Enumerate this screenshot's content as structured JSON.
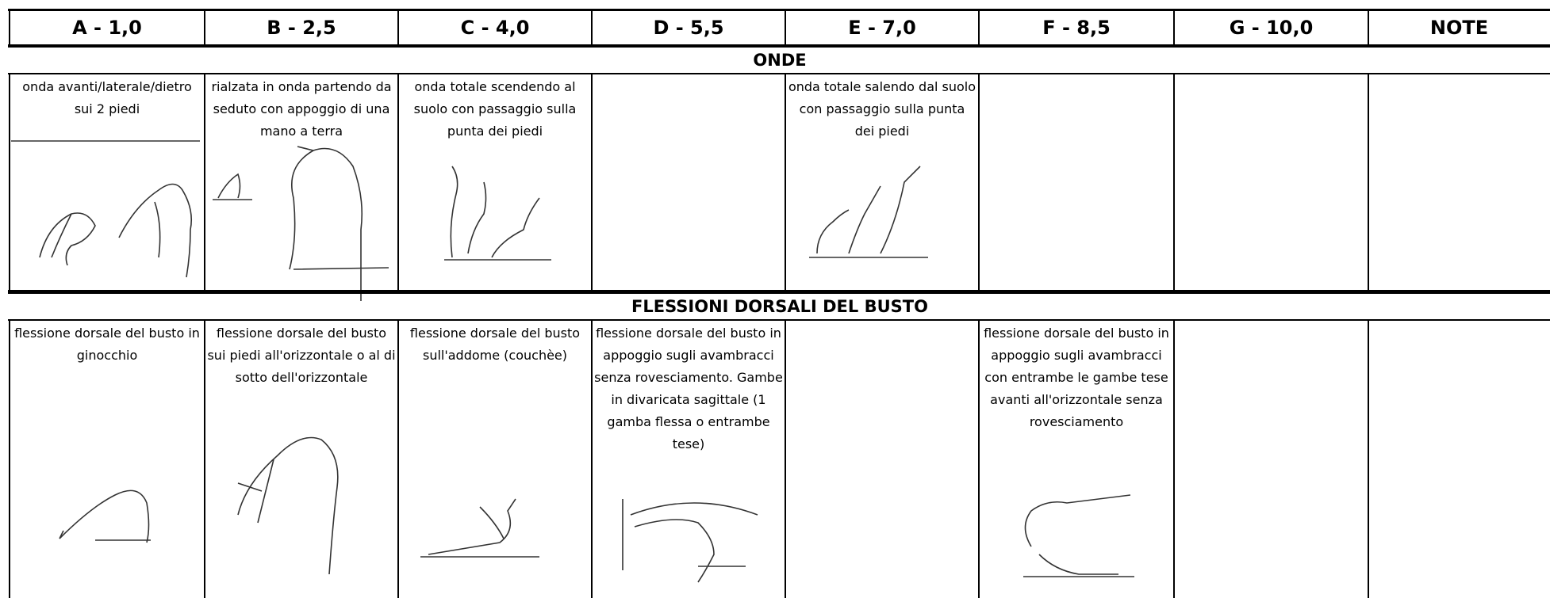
{
  "header": {
    "columns": [
      "A - 1,0",
      "B - 2,5",
      "C - 4,0",
      "D - 5,5",
      "E - 7,0",
      "F - 8,5",
      "G - 10,0",
      "NOTE"
    ]
  },
  "sections": [
    {
      "title": "ONDE",
      "cells": [
        "onda avanti/laterale/dietro sui 2 piedi",
        "rialzata in onda partendo da seduto con appoggio di una mano a terra",
        "onda totale scendendo al suolo con passaggio sulla punta dei piedi",
        null,
        "onda totale salendo dal suolo con passaggio sulla punta dei piedi",
        null,
        null,
        null
      ]
    },
    {
      "title": "FLESSIONI DORSALI DEL BUSTO",
      "cells": [
        "flessione dorsale del busto in ginocchio",
        "flessione dorsale del busto sui piedi all'orizzontale o al di sotto dell'orizzontale",
        "flessione dorsale del busto sull'addome (couchèe)",
        "flessione dorsale del busto in appoggio sugli avambracci senza rovesciamento. Gambe in divaricata sagittale (1 gamba flessa o entrambe tese)",
        null,
        "flessione dorsale del busto in appoggio sugli avambracci con entrambe le gambe tese avanti all'orizzontale senza rovesciamento",
        null,
        null
      ]
    }
  ]
}
